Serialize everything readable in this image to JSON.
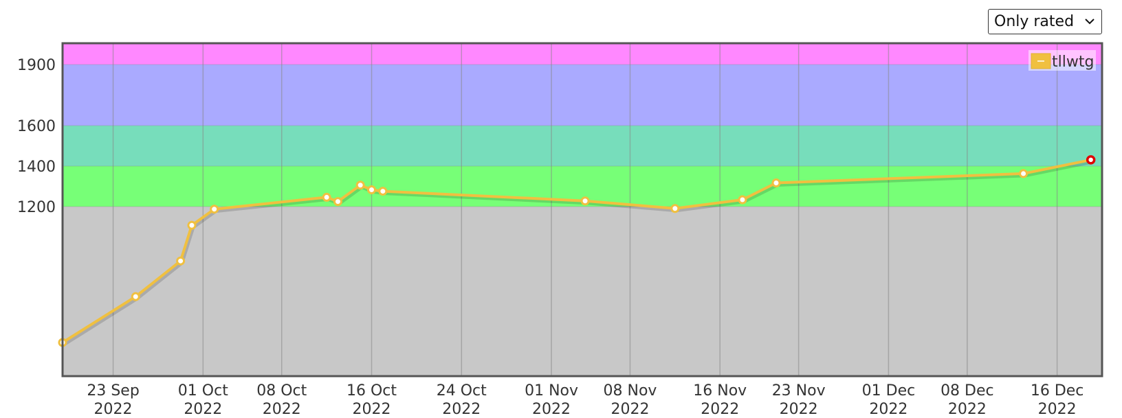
{
  "filter": {
    "selected": "Only rated",
    "options": [
      "Only rated"
    ]
  },
  "chart_data": {
    "type": "line",
    "title": "",
    "xlabel": "",
    "ylabel": "",
    "x_axis": "date",
    "x_range": [
      "2022-09-18T12:00",
      "2022-12-20"
    ],
    "y_scale": "nonlinear (compressed below 1200)",
    "ylim": [
      0,
      2000
    ],
    "grid": true,
    "legend_position": "top-right",
    "x_ticks": [
      {
        "date": "2022-09-23",
        "label": [
          "23 Sep",
          "2022"
        ]
      },
      {
        "date": "2022-10-01",
        "label": [
          "01 Oct",
          "2022"
        ]
      },
      {
        "date": "2022-10-08",
        "label": [
          "08 Oct",
          "2022"
        ]
      },
      {
        "date": "2022-10-16",
        "label": [
          "16 Oct",
          "2022"
        ]
      },
      {
        "date": "2022-10-24",
        "label": [
          "24 Oct",
          "2022"
        ]
      },
      {
        "date": "2022-11-01",
        "label": [
          "01 Nov",
          "2022"
        ]
      },
      {
        "date": "2022-11-08",
        "label": [
          "08 Nov",
          "2022"
        ]
      },
      {
        "date": "2022-11-16",
        "label": [
          "16 Nov",
          "2022"
        ]
      },
      {
        "date": "2022-11-23",
        "label": [
          "23 Nov",
          "2022"
        ]
      },
      {
        "date": "2022-12-01",
        "label": [
          "01 Dec",
          "2022"
        ]
      },
      {
        "date": "2022-12-08",
        "label": [
          "08 Dec",
          "2022"
        ]
      },
      {
        "date": "2022-12-16",
        "label": [
          "16 Dec",
          "2022"
        ]
      }
    ],
    "y_ticks": [
      {
        "value": 1200,
        "label": "1200"
      },
      {
        "value": 1400,
        "label": "1400"
      },
      {
        "value": 1600,
        "label": "1600"
      },
      {
        "value": 1900,
        "label": "1900"
      }
    ],
    "bands": [
      {
        "from": 0,
        "to": 1200,
        "color": "#c8c8c8"
      },
      {
        "from": 1200,
        "to": 1400,
        "color": "#77ff77"
      },
      {
        "from": 1400,
        "to": 1600,
        "color": "#77ddbb"
      },
      {
        "from": 1600,
        "to": 1900,
        "color": "#aaaaff"
      },
      {
        "from": 1900,
        "to": 2000,
        "color": "#ff88ff"
      }
    ],
    "series": [
      {
        "name": "tllwtg",
        "color": "#f0c040",
        "points": [
          {
            "x": "2022-09-18T12:00",
            "y": 400
          },
          {
            "x": "2022-09-25",
            "y": 670
          },
          {
            "x": "2022-09-29",
            "y": 880
          },
          {
            "x": "2022-09-30",
            "y": 1090
          },
          {
            "x": "2022-10-02",
            "y": 1185
          },
          {
            "x": "2022-10-12",
            "y": 1246
          },
          {
            "x": "2022-10-13",
            "y": 1225
          },
          {
            "x": "2022-10-15",
            "y": 1306
          },
          {
            "x": "2022-10-16",
            "y": 1283
          },
          {
            "x": "2022-10-17",
            "y": 1276
          },
          {
            "x": "2022-11-04",
            "y": 1228
          },
          {
            "x": "2022-11-12",
            "y": 1189
          },
          {
            "x": "2022-11-18",
            "y": 1234
          },
          {
            "x": "2022-11-21",
            "y": 1317
          },
          {
            "x": "2022-12-13",
            "y": 1363
          },
          {
            "x": "2022-12-19",
            "y": 1431
          }
        ]
      }
    ]
  }
}
